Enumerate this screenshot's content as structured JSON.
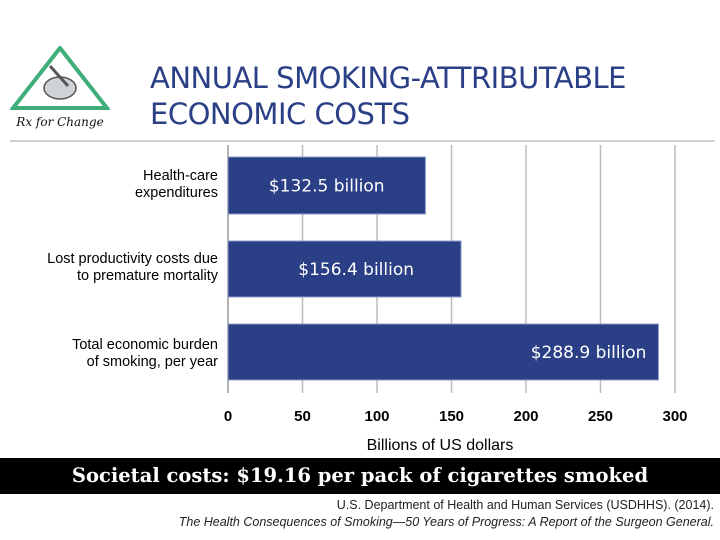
{
  "logo": {
    "text": "Rx for Change"
  },
  "title_lines": [
    "ANNUAL SMOKING-ATTRIBUTABLE",
    "ECONOMIC COSTS"
  ],
  "categories": [
    [
      "Health-care",
      "expenditures"
    ],
    [
      "Lost productivity costs due",
      "to premature mortality"
    ],
    [
      "Total economic burden",
      "of smoking, per year"
    ]
  ],
  "chart_data": {
    "type": "bar",
    "orientation": "horizontal",
    "categories": [
      "Health-care expenditures",
      "Lost productivity costs due to premature mortality",
      "Total economic burden of smoking, per year"
    ],
    "values": [
      132.5,
      156.4,
      288.9
    ],
    "data_labels": [
      "$132.5 billion",
      "$156.4 billion",
      "$288.9 billion"
    ],
    "xlabel": "Billions of US dollars",
    "ylabel": "",
    "xlim": [
      0,
      300
    ],
    "xticks": [
      0,
      50,
      100,
      150,
      200,
      250,
      300
    ],
    "grid": "vertical",
    "bar_color": "#2a3f86"
  },
  "banner": "Societal costs: $19.16 per pack of cigarettes smoked",
  "citation": {
    "line1": "U.S. Department of Health and Human Services (USDHHS). (2014).",
    "line2": "The Health Consequences of Smoking—50 Years of Progress: A Report of the Surgeon General."
  }
}
